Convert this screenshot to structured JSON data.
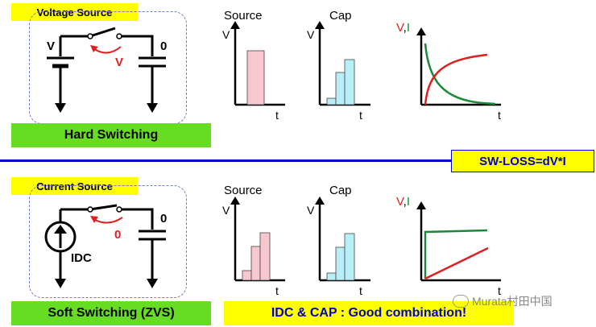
{
  "top": {
    "source_label": "Voltage Source",
    "switch_label": "Hard Switching",
    "left_node": "V",
    "right_node": "0",
    "arrow_label": "V",
    "chart_titles": {
      "source": "Source",
      "cap": "Cap",
      "vi_v": "V",
      "vi_comma": ",",
      "vi_i": "I"
    },
    "axis_v": "V",
    "axis_t": "t"
  },
  "separator_label": "SW-LOSS=dV*I",
  "bottom": {
    "source_label": "Current Source",
    "switch_label": "Soft Switching (ZVS)",
    "right_node": "0",
    "arrow_label": "0",
    "source_name": "IDC",
    "chart_titles": {
      "source": "Source",
      "cap": "Cap",
      "vi_v": "V",
      "vi_comma": ",",
      "vi_i": "I"
    },
    "axis_v": "V",
    "axis_t": "t",
    "band": "IDC & CAP : Good combination!"
  },
  "watermark": "Murata村田中国",
  "colors": {
    "pink": "#f8c8d0",
    "cyan": "#b8eef8",
    "red": "#e02020",
    "green": "#1a8a3a",
    "blue": "#0000cc"
  },
  "chart_data": [
    {
      "type": "bar",
      "name": "top-source",
      "values": [
        1
      ]
    },
    {
      "type": "bar",
      "name": "top-cap",
      "values": [
        0.15,
        0.5,
        0.75
      ]
    },
    {
      "type": "line",
      "name": "top-vi",
      "series": [
        {
          "color": "red",
          "shape": "rising-exponential"
        },
        {
          "color": "green",
          "shape": "decaying-exponential"
        }
      ]
    },
    {
      "type": "bar",
      "name": "bottom-source",
      "values": [
        0.2,
        0.6,
        0.95
      ]
    },
    {
      "type": "bar",
      "name": "bottom-cap",
      "values": [
        0.15,
        0.55,
        0.9
      ]
    },
    {
      "type": "line",
      "name": "bottom-vi",
      "series": [
        {
          "color": "red",
          "shape": "linear-ramp"
        },
        {
          "color": "green",
          "shape": "step-constant"
        }
      ]
    }
  ]
}
